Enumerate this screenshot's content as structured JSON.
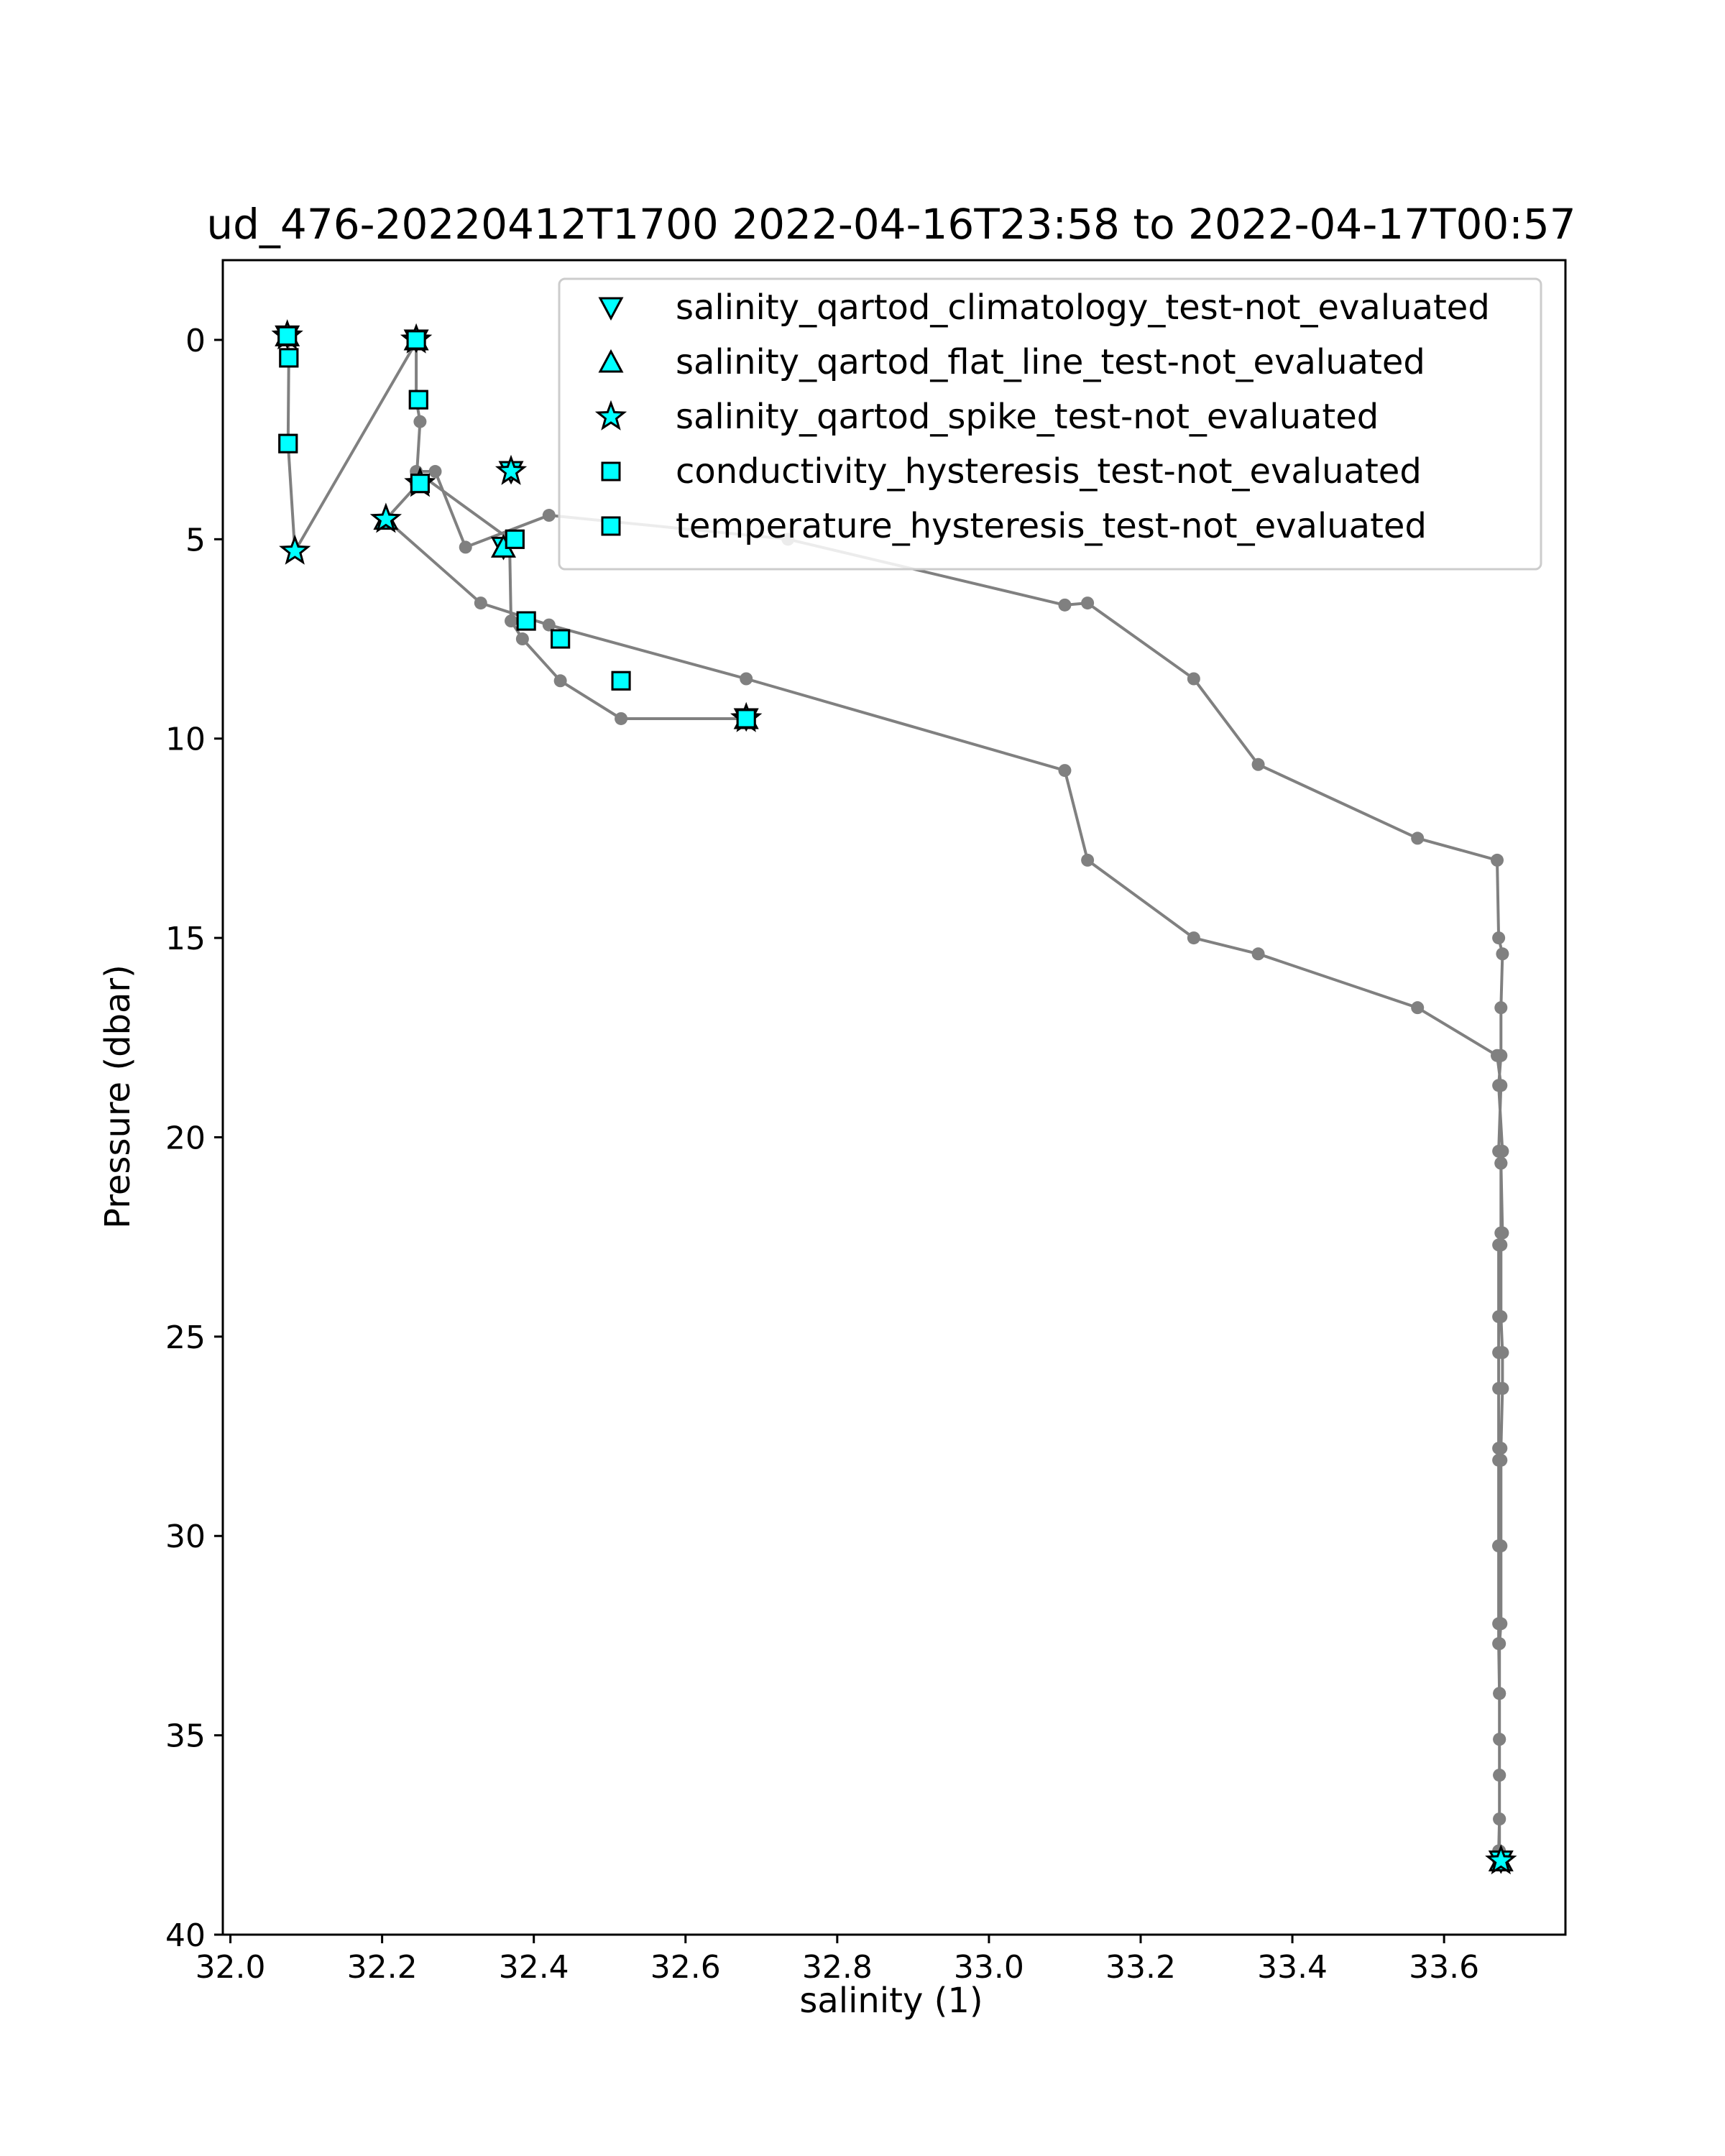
{
  "chart_data": {
    "type": "scatter",
    "title": "ud_476-20220412T1700 2022-04-16T23:58 to 2022-04-17T00:57",
    "xlabel": "salinity (1)",
    "ylabel": "Pressure (dbar)",
    "xlim": [
      31.99,
      33.76
    ],
    "ylim": [
      40.0,
      -2.0
    ],
    "y_inverted": true,
    "xticks": [
      "32.0",
      "32.2",
      "32.4",
      "32.6",
      "32.8",
      "33.0",
      "33.2",
      "33.4",
      "33.6"
    ],
    "yticks": [
      "0",
      "5",
      "10",
      "15",
      "20",
      "25",
      "30",
      "35",
      "40"
    ],
    "grid": false,
    "legend_position": "upper right",
    "colors": {
      "profile_line": "#808080",
      "flag_fill": "#00ffff",
      "flag_edge": "#000000"
    },
    "profile": {
      "x": [
        32.075,
        32.077,
        32.076,
        32.085,
        32.245,
        32.245,
        32.25,
        32.245,
        32.248,
        32.205,
        32.33,
        32.42,
        32.68,
        33.1,
        33.13,
        33.27,
        33.355,
        33.565,
        33.67,
        33.675,
        33.672,
        33.675,
        33.675,
        33.672,
        33.672,
        33.672,
        33.672,
        33.672,
        33.672,
        33.672,
        33.672,
        33.672,
        33.672,
        33.673,
        33.673,
        33.673,
        33.673,
        33.672,
        33.672,
        33.673,
        33.673,
        33.673,
        33.673,
        33.673,
        33.673,
        33.673,
        33.675,
        33.675,
        33.675,
        33.675,
        33.677,
        33.677,
        33.675,
        33.675,
        33.677,
        33.675,
        33.677,
        33.672,
        33.675,
        33.675,
        33.677,
        33.672,
        33.67,
        33.565,
        33.355,
        33.27,
        33.13,
        33.1,
        32.735,
        32.42,
        32.31,
        32.27,
        32.245,
        32.368,
        32.37,
        32.385,
        32.435,
        32.515,
        32.68
      ],
      "y": [
        -0.1,
        0.45,
        2.6,
        5.3,
        0.05,
        1.5,
        2.05,
        3.6,
        3.6,
        4.5,
        6.6,
        7.15,
        8.5,
        10.8,
        13.05,
        15.0,
        15.4,
        16.75,
        17.95,
        18.7,
        20.35,
        20.65,
        22.4,
        22.7,
        24.5,
        25.4,
        26.3,
        27.8,
        28.1,
        30.25,
        30.25,
        32.2,
        32.7,
        33.95,
        35.1,
        36.0,
        37.1,
        37.9,
        38.15,
        38.15,
        37.9,
        37.1,
        36.0,
        35.1,
        33.95,
        32.7,
        32.2,
        30.25,
        28.1,
        27.8,
        26.3,
        25.4,
        24.5,
        22.7,
        22.4,
        20.65,
        20.35,
        18.7,
        17.95,
        16.75,
        15.4,
        15.0,
        13.05,
        12.5,
        10.65,
        8.5,
        6.6,
        6.65,
        5.0,
        4.4,
        5.2,
        3.3,
        3.3,
        5.0,
        7.05,
        7.5,
        8.55,
        9.5,
        9.5
      ]
    },
    "series": [
      {
        "name": "salinity_qartod_climatology_test-not_evaluated",
        "marker": "triangle-down",
        "x": [
          32.075,
          32.245,
          32.37,
          32.36,
          32.68,
          33.675
        ],
        "y": [
          -0.1,
          0.0,
          3.3,
          5.2,
          9.5,
          38.15
        ]
      },
      {
        "name": "salinity_qartod_flat_line_test-not_evaluated",
        "marker": "triangle-up",
        "x": [
          32.075,
          32.245,
          32.205,
          32.36,
          32.68,
          33.675
        ],
        "y": [
          -0.1,
          0.0,
          4.5,
          5.2,
          9.5,
          38.15
        ]
      },
      {
        "name": "salinity_qartod_spike_test-not_evaluated",
        "marker": "star",
        "x": [
          32.075,
          32.245,
          32.25,
          32.205,
          32.37,
          32.085,
          32.68,
          33.675
        ],
        "y": [
          -0.1,
          0.0,
          3.6,
          4.5,
          3.3,
          5.3,
          9.5,
          38.15
        ]
      },
      {
        "name": "conductivity_hysteresis_test-not_evaluated",
        "marker": "square",
        "x": [
          32.075,
          32.077,
          32.076,
          32.245,
          32.248,
          32.25,
          32.375,
          32.39,
          32.435,
          32.515,
          32.68
        ],
        "y": [
          -0.1,
          0.45,
          2.6,
          0.0,
          1.5,
          3.6,
          5.0,
          7.05,
          7.5,
          8.55,
          9.5
        ]
      },
      {
        "name": "temperature_hysteresis_test-not_evaluated",
        "marker": "square",
        "x": [
          32.075,
          32.077,
          32.076,
          32.245,
          32.248,
          32.25,
          32.375,
          32.39,
          32.435,
          32.515,
          32.68
        ],
        "y": [
          -0.1,
          0.45,
          2.6,
          0.0,
          1.5,
          3.6,
          5.0,
          7.05,
          7.5,
          8.55,
          9.5
        ]
      }
    ]
  }
}
